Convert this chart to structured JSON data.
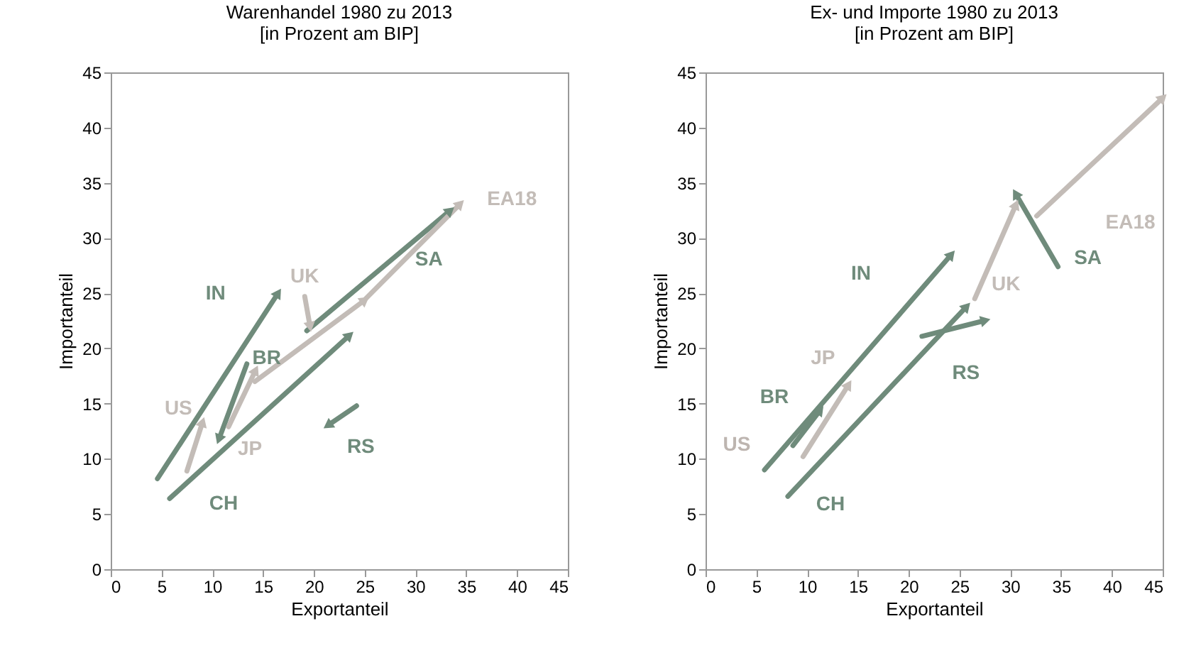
{
  "chart_data": [
    {
      "type": "line",
      "title": "Warenhandel 1980 zu 2013",
      "subtitle": "[in Prozent am BIP]",
      "xlabel": "Exportanteil",
      "ylabel": "Importanteil",
      "xlim": [
        0,
        45
      ],
      "ylim": [
        0,
        45
      ],
      "xticks": [
        0,
        5,
        10,
        15,
        20,
        25,
        30,
        35,
        40,
        45
      ],
      "yticks": [
        0,
        5,
        10,
        15,
        20,
        25,
        30,
        35,
        40,
        45
      ],
      "grid": false,
      "legend": false,
      "marker": "triangle",
      "line_style": "solid",
      "series": [
        {
          "name": "IN",
          "color": "#6f8b7b",
          "x": [
            4.6,
            16.4
          ],
          "values": [
            8.2,
            24.9
          ]
        },
        {
          "name": "CH",
          "color": "#6f8b7b",
          "x": [
            5.8,
            23.4
          ],
          "values": [
            6.4,
            21.1
          ]
        },
        {
          "name": "SA",
          "color": "#6f8b7b",
          "x": [
            19.3,
            33.3
          ],
          "values": [
            21.6,
            32.4
          ]
        },
        {
          "name": "BR",
          "color": "#6f8b7b",
          "x": [
            13.4,
            10.7
          ],
          "values": [
            18.6,
            11.9
          ]
        },
        {
          "name": "RS",
          "color": "#6f8b7b",
          "x": [
            24.2,
            21.5
          ],
          "values": [
            14.8,
            13.1
          ]
        },
        {
          "name": "US",
          "color": "#c3bcb7",
          "x": [
            7.5,
            9.0
          ],
          "values": [
            8.9,
            13.2
          ]
        },
        {
          "name": "JP",
          "color": "#c3bcb7",
          "x": [
            11.6,
            14.2
          ],
          "values": [
            12.9,
            17.9
          ]
        },
        {
          "name": "UK",
          "color": "#c3bcb7",
          "x": [
            19.1,
            19.6
          ],
          "values": [
            24.7,
            22.1
          ]
        },
        {
          "color": "#c3bcb7",
          "x": [
            14.2,
            24.9
          ],
          "values": [
            17.0,
            24.3
          ]
        },
        {
          "name": "EA18",
          "color": "#c3bcb7",
          "x": [
            25.1,
            34.3
          ],
          "values": [
            24.5,
            33.0
          ]
        }
      ]
    },
    {
      "type": "line",
      "title": "Ex- und Importe 1980 zu 2013",
      "subtitle": "[in Prozent am BIP]",
      "xlabel": "Exportanteil",
      "ylabel": "Importanteil",
      "xlim": [
        0,
        45
      ],
      "ylim": [
        0,
        45
      ],
      "xticks": [
        0,
        5,
        10,
        15,
        20,
        25,
        30,
        35,
        40,
        45
      ],
      "yticks": [
        0,
        5,
        10,
        15,
        20,
        25,
        30,
        35,
        40,
        45
      ],
      "grid": false,
      "legend": false,
      "marker": "triangle",
      "line_style": "solid",
      "annotations": [
        "US"
      ],
      "series": [
        {
          "name": "IN",
          "color": "#6f8b7b",
          "x": [
            5.8,
            24.1
          ],
          "values": [
            9.0,
            28.4
          ]
        },
        {
          "name": "BR",
          "color": "#6f8b7b",
          "x": [
            8.6,
            11.2
          ],
          "values": [
            11.2,
            14.3
          ]
        },
        {
          "name": "CH",
          "color": "#6f8b7b",
          "x": [
            8.1,
            25.6
          ],
          "values": [
            6.6,
            23.7
          ]
        },
        {
          "name": "RS",
          "color": "#6f8b7b",
          "x": [
            21.3,
            27.4
          ],
          "values": [
            21.1,
            22.5
          ]
        },
        {
          "name": "SA",
          "color": "#6f8b7b",
          "x": [
            34.7,
            30.6
          ],
          "values": [
            27.4,
            33.9
          ]
        },
        {
          "name": "UK",
          "color": "#c3bcb7",
          "x": [
            26.5,
            30.5
          ],
          "values": [
            24.5,
            32.9
          ]
        },
        {
          "name": "EA18",
          "color": "#c3bcb7",
          "x": [
            32.6,
            44.9
          ],
          "values": [
            32.0,
            42.6
          ]
        },
        {
          "name": "JP",
          "color": "#c3bcb7",
          "x": [
            9.6,
            14.0
          ],
          "values": [
            10.2,
            16.6
          ]
        }
      ]
    }
  ]
}
